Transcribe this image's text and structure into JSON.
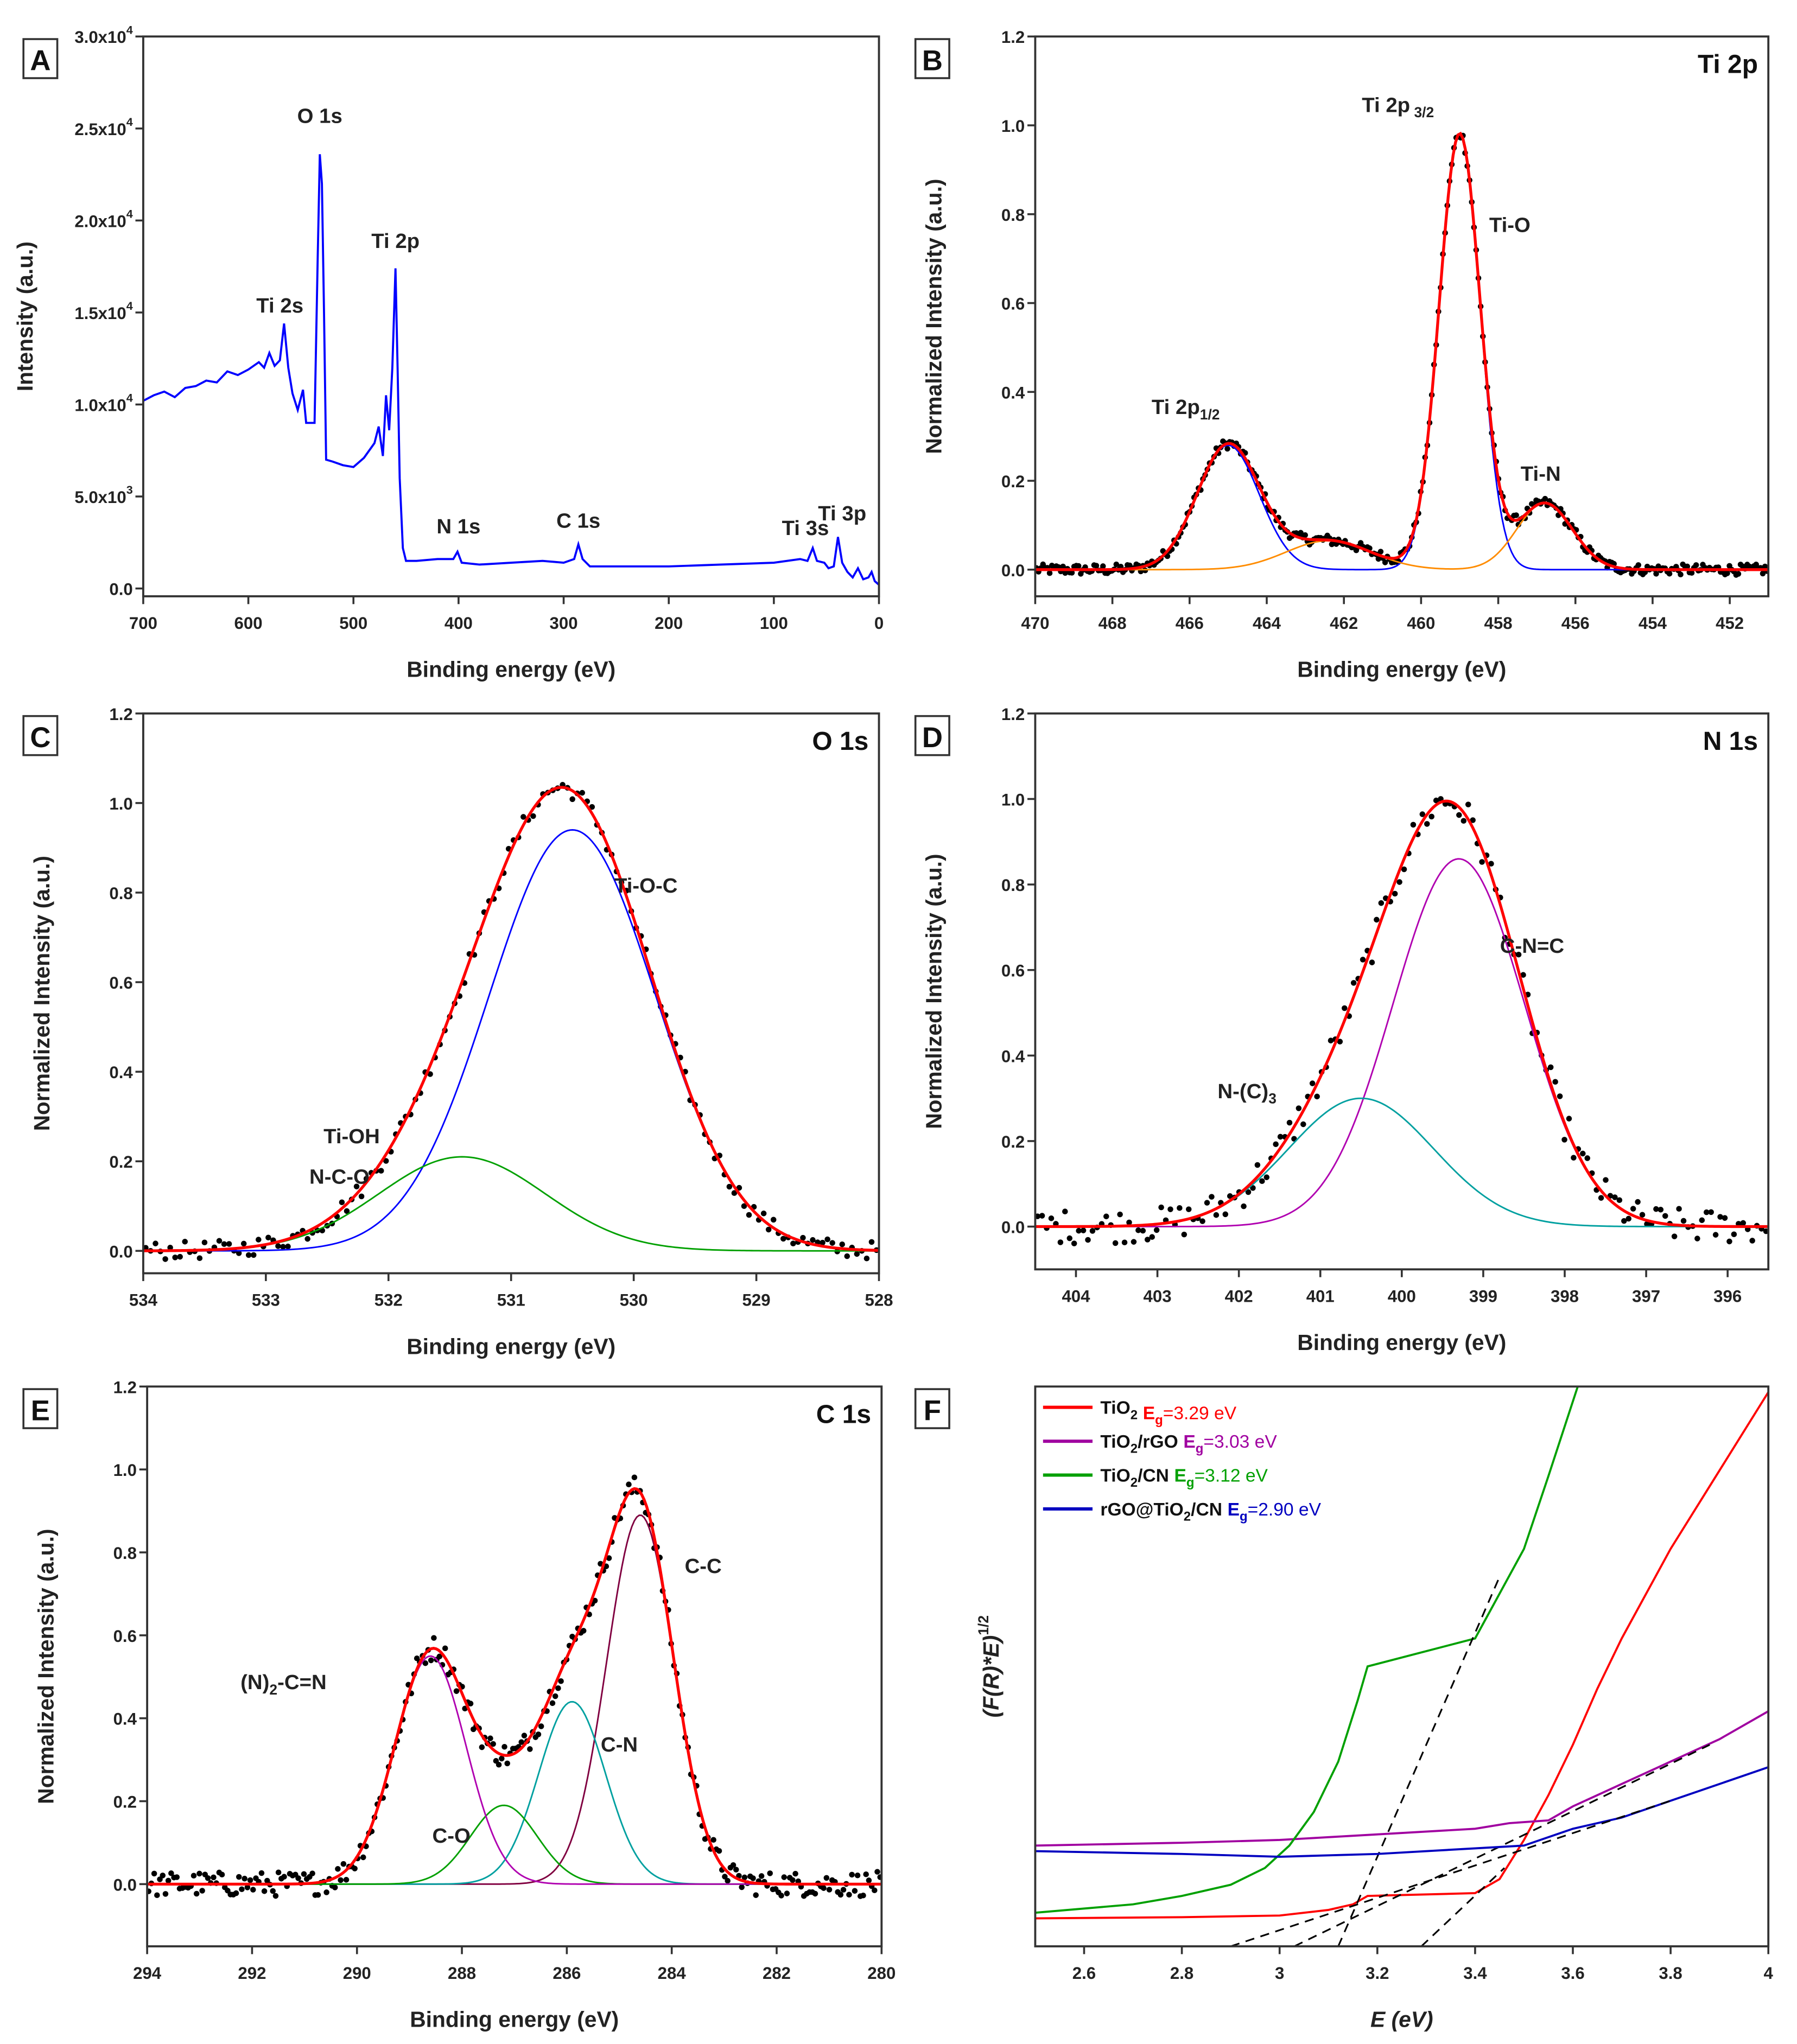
{
  "chart_data": [
    {
      "panel": "A",
      "type": "line",
      "xlabel": "Binding energy (eV)",
      "ylabel": "Intensity (a.u.)",
      "xlim": [
        700,
        0
      ],
      "ylim": [
        -424,
        30000
      ],
      "xticks": [
        700,
        600,
        500,
        400,
        300,
        200,
        100,
        0
      ],
      "yticks": [
        {
          "value": 0,
          "label": "0.0",
          "exp": ""
        },
        {
          "value": 5000,
          "label": "5.0x10",
          "exp": "3"
        },
        {
          "value": 10000,
          "label": "1.0x10",
          "exp": "4"
        },
        {
          "value": 15000,
          "label": "1.5x10",
          "exp": "4"
        },
        {
          "value": 20000,
          "label": "2.0x10",
          "exp": "4"
        },
        {
          "value": 25000,
          "label": "2.5x10",
          "exp": "4"
        },
        {
          "value": 30000,
          "label": "3.0x10",
          "exp": "4"
        }
      ],
      "series": [
        {
          "color": "#0000ff",
          "points": [
            [
              700,
              10200
            ],
            [
              690,
              10500
            ],
            [
              680,
              10700
            ],
            [
              670,
              10400
            ],
            [
              660,
              10900
            ],
            [
              650,
              11000
            ],
            [
              640,
              11300
            ],
            [
              630,
              11200
            ],
            [
              620,
              11800
            ],
            [
              610,
              11600
            ],
            [
              600,
              11900
            ],
            [
              590,
              12300
            ],
            [
              585,
              12000
            ],
            [
              580,
              12800
            ],
            [
              575,
              12100
            ],
            [
              570,
              12400
            ],
            [
              566,
              14400
            ],
            [
              562,
              12000
            ],
            [
              558,
              10600
            ],
            [
              553,
              9700
            ],
            [
              548,
              10800
            ],
            [
              545,
              9000
            ],
            [
              540,
              9000
            ],
            [
              537,
              9000
            ],
            [
              534,
              18000
            ],
            [
              532,
              23600
            ],
            [
              530,
              22000
            ],
            [
              528,
              15000
            ],
            [
              526,
              7000
            ],
            [
              520,
              6900
            ],
            [
              510,
              6700
            ],
            [
              500,
              6600
            ],
            [
              490,
              7100
            ],
            [
              480,
              7900
            ],
            [
              476,
              8800
            ],
            [
              472,
              7200
            ],
            [
              469,
              10500
            ],
            [
              466,
              8600
            ],
            [
              463,
              12000
            ],
            [
              460,
              17400
            ],
            [
              458,
              12000
            ],
            [
              456,
              6000
            ],
            [
              453,
              2200
            ],
            [
              450,
              1500
            ],
            [
              440,
              1500
            ],
            [
              420,
              1600
            ],
            [
              405,
              1600
            ],
            [
              401,
              2000
            ],
            [
              397,
              1400
            ],
            [
              380,
              1300
            ],
            [
              350,
              1400
            ],
            [
              320,
              1500
            ],
            [
              300,
              1400
            ],
            [
              290,
              1600
            ],
            [
              286,
              2400
            ],
            [
              282,
              1600
            ],
            [
              275,
              1200
            ],
            [
              250,
              1200
            ],
            [
              200,
              1200
            ],
            [
              150,
              1300
            ],
            [
              100,
              1400
            ],
            [
              75,
              1600
            ],
            [
              68,
              1500
            ],
            [
              63,
              2200
            ],
            [
              59,
              1500
            ],
            [
              52,
              1400
            ],
            [
              48,
              1100
            ],
            [
              43,
              1200
            ],
            [
              39,
              2800
            ],
            [
              35,
              1400
            ],
            [
              30,
              900
            ],
            [
              25,
              600
            ],
            [
              20,
              1100
            ],
            [
              15,
              500
            ],
            [
              10,
              600
            ],
            [
              7,
              900
            ],
            [
              4,
              400
            ],
            [
              0,
              200
            ]
          ]
        }
      ],
      "annotations": [
        {
          "text": "O 1s",
          "sub": "",
          "at": [
            532,
            25300
          ]
        },
        {
          "text": "Ti 2p",
          "sub": "",
          "at": [
            460,
            18500
          ]
        },
        {
          "text": "Ti 2s",
          "sub": "",
          "at": [
            570,
            15000
          ]
        },
        {
          "text": "N 1s",
          "sub": "",
          "at": [
            400,
            3000
          ]
        },
        {
          "text": "C 1s",
          "sub": "",
          "at": [
            286,
            3300
          ]
        },
        {
          "text": "Ti 3s",
          "sub": "",
          "at": [
            70,
            2900
          ]
        },
        {
          "text": "Ti 3p",
          "sub": "",
          "at": [
            35,
            3700
          ]
        }
      ]
    },
    {
      "panel": "B",
      "type": "scatter+fit",
      "title": "Ti 2p",
      "xlabel": "Binding energy (eV)",
      "ylabel": "Normalized Intensity (a.u.)",
      "xlim": [
        470,
        451
      ],
      "ylim": [
        -0.06,
        1.2
      ],
      "xticks": [
        470,
        468,
        466,
        464,
        462,
        460,
        458,
        456,
        454,
        452
      ],
      "yticks": [
        0.0,
        0.2,
        0.4,
        0.6,
        0.8,
        1.0,
        1.2
      ],
      "components": [
        {
          "color": "#0000ff",
          "peaks": [
            {
              "center": 459.0,
              "height": 0.98,
              "fwhm": 1.25
            },
            {
              "center": 465.0,
              "height": 0.28,
              "fwhm": 1.9
            }
          ]
        },
        {
          "color": "#ff8c00",
          "peaks": [
            {
              "center": 456.8,
              "height": 0.15,
              "fwhm": 1.7
            },
            {
              "center": 462.4,
              "height": 0.065,
              "fwhm": 2.6
            }
          ]
        }
      ],
      "envelope_color": "#ff0000",
      "annotations": [
        {
          "text": "Ti 2p",
          "sub": " 3/2",
          "at": [
            460.6,
            1.03
          ]
        },
        {
          "text": "Ti-O",
          "sub": "",
          "at": [
            457.7,
            0.76
          ]
        },
        {
          "text": "Ti 2p",
          "sub": "1/2",
          "at": [
            466.1,
            0.35
          ]
        },
        {
          "text": "Ti-N",
          "sub": "",
          "at": [
            456.9,
            0.2
          ]
        }
      ]
    },
    {
      "panel": "C",
      "type": "scatter+fit",
      "title": "O 1s",
      "xlabel": "Binding energy (eV)",
      "ylabel": "Normalized Intensity (a.u.)",
      "xlim": [
        534,
        528
      ],
      "ylim": [
        -0.05,
        1.2
      ],
      "xticks": [
        534,
        533,
        532,
        531,
        530,
        529,
        528
      ],
      "yticks": [
        0.0,
        0.2,
        0.4,
        0.6,
        0.8,
        1.0,
        1.2
      ],
      "components": [
        {
          "color": "#0000ff",
          "peaks": [
            {
              "center": 530.5,
              "height": 0.94,
              "fwhm": 1.6
            }
          ]
        },
        {
          "color": "#00a000",
          "peaks": [
            {
              "center": 531.4,
              "height": 0.21,
              "fwhm": 1.6
            }
          ]
        }
      ],
      "envelope_color": "#ff0000",
      "annotations": [
        {
          "text": "Ti-O-C",
          "sub": "",
          "at": [
            529.9,
            0.8
          ]
        },
        {
          "text": "Ti-OH",
          "sub": "",
          "at": [
            532.3,
            0.24
          ]
        },
        {
          "text": "N-C-O",
          "sub": "",
          "at": [
            532.4,
            0.15
          ]
        }
      ]
    },
    {
      "panel": "D",
      "type": "scatter+fit",
      "title": "N 1s",
      "xlabel": "Binding energy (eV)",
      "ylabel": "Normalized Intensity (a.u.)",
      "xlim": [
        404.5,
        395.5
      ],
      "ylim": [
        -0.1,
        1.2
      ],
      "xticks": [
        404,
        403,
        402,
        401,
        400,
        399,
        398,
        397,
        396
      ],
      "yticks": [
        0.0,
        0.2,
        0.4,
        0.6,
        0.8,
        1.0,
        1.2
      ],
      "components": [
        {
          "color": "#b000b0",
          "peaks": [
            {
              "center": 399.3,
              "height": 0.86,
              "fwhm": 1.9
            }
          ]
        },
        {
          "color": "#00a0a0",
          "peaks": [
            {
              "center": 400.5,
              "height": 0.3,
              "fwhm": 2.1
            }
          ]
        }
      ],
      "envelope_color": "#ff0000",
      "annotations": [
        {
          "text": "C-N=C",
          "sub": "",
          "at": [
            398.4,
            0.64
          ]
        },
        {
          "text": "N-(C)",
          "sub": "3",
          "at": [
            401.9,
            0.3
          ]
        }
      ]
    },
    {
      "panel": "E",
      "type": "scatter+fit",
      "title": "C 1s",
      "xlabel": "Binding energy (eV)",
      "ylabel": "Normalized Intensity (a.u.)",
      "xlim": [
        294,
        280
      ],
      "ylim": [
        -0.15,
        1.2
      ],
      "xticks": [
        294,
        292,
        290,
        288,
        286,
        284,
        282,
        280
      ],
      "yticks": [
        0.0,
        0.2,
        0.4,
        0.6,
        0.8,
        1.0,
        1.2
      ],
      "components": [
        {
          "color": "#800040",
          "peaks": [
            {
              "center": 284.6,
              "height": 0.89,
              "fwhm": 1.5
            }
          ]
        },
        {
          "color": "#00a0a0",
          "peaks": [
            {
              "center": 285.9,
              "height": 0.44,
              "fwhm": 1.5
            }
          ]
        },
        {
          "color": "#00a000",
          "peaks": [
            {
              "center": 287.2,
              "height": 0.19,
              "fwhm": 1.5
            }
          ]
        },
        {
          "color": "#b000b0",
          "peaks": [
            {
              "center": 288.6,
              "height": 0.55,
              "fwhm": 1.6
            }
          ]
        }
      ],
      "envelope_color": "#ff0000",
      "annotations": [
        {
          "text": "C-C",
          "sub": "",
          "at": [
            283.4,
            0.75
          ]
        },
        {
          "text": "C-N",
          "sub": "",
          "at": [
            285.0,
            0.32
          ]
        },
        {
          "text": "C-O",
          "sub": "",
          "at": [
            288.2,
            0.1
          ]
        },
        {
          "text": "(N)",
          "sub": "2",
          "text2": "-C=N",
          "at": [
            291.4,
            0.47
          ]
        }
      ]
    },
    {
      "panel": "F",
      "type": "line",
      "xlabel": "E (eV)",
      "ylabel": "(F(R)*E)",
      "ylabel_exp": "1/2",
      "xlim": [
        2.5,
        4.0
      ],
      "ylim": [
        0,
        100
      ],
      "xticks": [
        2.6,
        2.8,
        3.0,
        3.2,
        3.4,
        3.6,
        3.8,
        4.0
      ],
      "legend_position": "top-left",
      "series": [
        {
          "name": "TiO",
          "name_sub": "2",
          "name_rest": "",
          "eg_symbol": "E",
          "eg_sub": "g",
          "eg_value": "=3.29 eV",
          "color": "#ff0000",
          "points": [
            [
              2.5,
              5
            ],
            [
              2.8,
              5.2
            ],
            [
              3.0,
              5.5
            ],
            [
              3.1,
              6.5
            ],
            [
              3.15,
              7.5
            ],
            [
              3.18,
              9
            ],
            [
              3.4,
              9.5
            ],
            [
              3.45,
              12
            ],
            [
              3.5,
              19
            ],
            [
              3.55,
              27
            ],
            [
              3.6,
              36
            ],
            [
              3.65,
              46
            ],
            [
              3.7,
              55
            ],
            [
              3.8,
              71
            ],
            [
              3.9,
              85
            ],
            [
              4.0,
              99
            ]
          ],
          "tangent": [
            [
              3.29,
              0
            ],
            [
              3.46,
              14
            ]
          ]
        },
        {
          "name": "TiO",
          "name_sub": "2",
          "name_rest": "/rGO",
          "eg_symbol": "E",
          "eg_sub": "g",
          "eg_value": "=3.03 eV",
          "color": "#a000a0",
          "points": [
            [
              2.5,
              18
            ],
            [
              2.8,
              18.5
            ],
            [
              3.0,
              19
            ],
            [
              3.2,
              20
            ],
            [
              3.4,
              21
            ],
            [
              3.47,
              22
            ],
            [
              3.55,
              22.5
            ],
            [
              3.6,
              25
            ],
            [
              3.7,
              29
            ],
            [
              3.8,
              33
            ],
            [
              3.9,
              37
            ],
            [
              4.0,
              42
            ]
          ],
          "tangent": [
            [
              3.03,
              0
            ],
            [
              3.88,
              36
            ]
          ]
        },
        {
          "name": "TiO",
          "name_sub": "2",
          "name_rest": "/CN",
          "eg_symbol": "E",
          "eg_sub": "g",
          "eg_value": "=3.12 eV",
          "color": "#00a000",
          "points": [
            [
              2.5,
              6
            ],
            [
              2.7,
              7.5
            ],
            [
              2.8,
              9
            ],
            [
              2.9,
              11
            ],
            [
              2.97,
              14
            ],
            [
              3.02,
              18
            ],
            [
              3.07,
              24
            ],
            [
              3.12,
              33
            ],
            [
              3.16,
              44
            ],
            [
              3.18,
              50
            ],
            [
              3.4,
              55
            ],
            [
              3.45,
              63
            ],
            [
              3.5,
              71
            ],
            [
              3.55,
              84
            ],
            [
              3.61,
              100
            ]
          ],
          "tangent": [
            [
              3.12,
              0
            ],
            [
              3.45,
              66
            ]
          ]
        },
        {
          "name": "rGO@TiO",
          "name_sub": "2",
          "name_rest": "/CN",
          "eg_symbol": "E",
          "eg_sub": "g",
          "eg_value": "=2.90 eV",
          "color": "#0000c0",
          "points": [
            [
              2.5,
              17
            ],
            [
              2.8,
              16.5
            ],
            [
              3.0,
              16
            ],
            [
              3.2,
              16.5
            ],
            [
              3.4,
              17.5
            ],
            [
              3.5,
              18
            ],
            [
              3.6,
              21
            ],
            [
              3.7,
              23
            ],
            [
              3.8,
              26
            ],
            [
              3.9,
              29
            ],
            [
              4.0,
              32
            ]
          ],
          "tangent": [
            [
              2.9,
              0
            ],
            [
              3.8,
              26
            ]
          ]
        }
      ]
    }
  ]
}
